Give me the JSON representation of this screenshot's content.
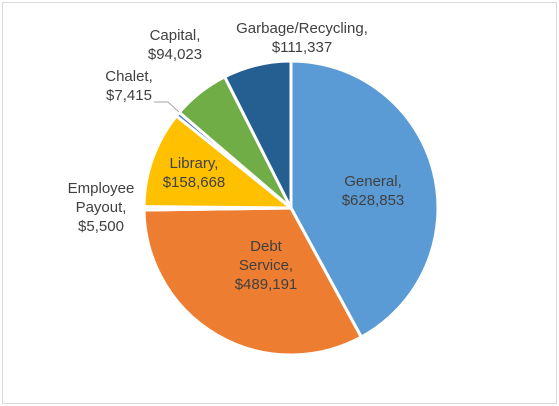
{
  "chart_data": {
    "type": "pie",
    "title": "",
    "legend": "none",
    "slices": [
      {
        "name": "General",
        "value": 628853,
        "value_label": "$628,853",
        "color": "#5b9bd5"
      },
      {
        "name": "Debt Service",
        "value": 489191,
        "value_label": "$489,191",
        "color": "#ed7d31"
      },
      {
        "name": "Employee Payout",
        "value": 5500,
        "value_label": "$5,500",
        "color": "#a5a5a5"
      },
      {
        "name": "Library",
        "value": 158668,
        "value_label": "$158,668",
        "color": "#ffc000"
      },
      {
        "name": "Chalet",
        "value": 7415,
        "value_label": "$7,415",
        "color": "#4472c4"
      },
      {
        "name": "Capital",
        "value": 94023,
        "value_label": "$94,023",
        "color": "#70ad47"
      },
      {
        "name": "Garbage/Recycling",
        "value": 111337,
        "value_label": "$111,337",
        "color": "#255e91"
      }
    ]
  }
}
